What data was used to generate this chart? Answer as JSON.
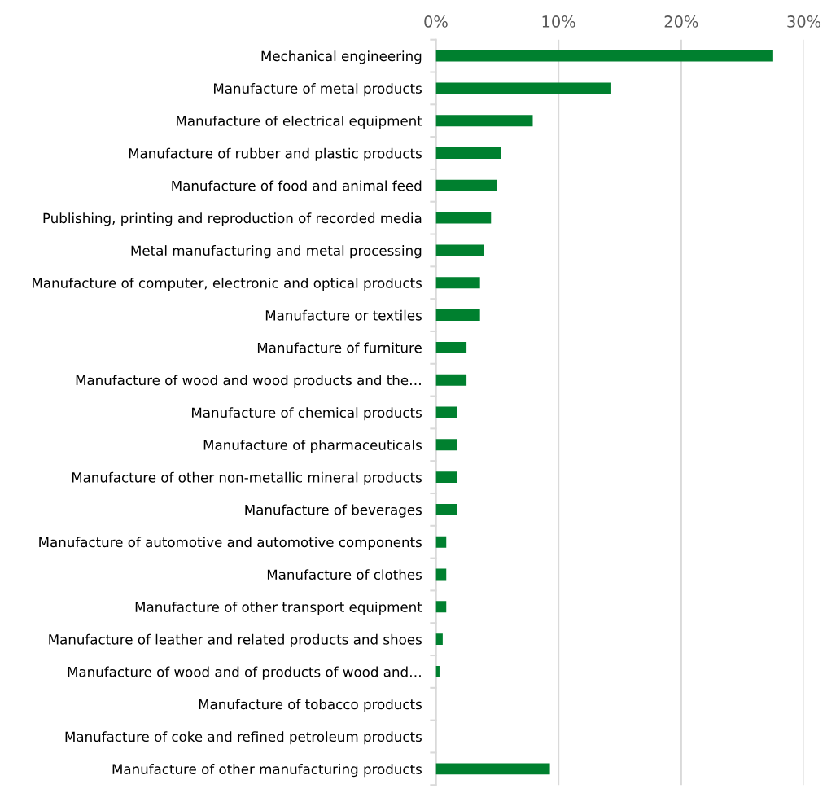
{
  "chart_data": {
    "type": "bar",
    "orientation": "horizontal",
    "categories": [
      "Mechanical engineering",
      "Manufacture of metal products",
      "Manufacture of electrical equipment",
      "Manufacture of rubber and plastic products",
      "Manufacture of food and animal feed",
      "Publishing, printing and reproduction of recorded media",
      "Metal manufacturing and metal processing",
      "Manufacture of computer, electronic and optical products",
      "Manufacture or textiles",
      "Manufacture of furniture",
      "Manufacture of wood and wood products and the…",
      "Manufacture of chemical products",
      "Manufacture of pharmaceuticals",
      "Manufacture of other non-metallic mineral products",
      "Manufacture of beverages",
      "Manufacture of automotive and automotive components",
      "Manufacture of clothes",
      "Manufacture of other transport equipment",
      "Manufacture of leather and related products and shoes",
      "Manufacture of wood and of products of wood and…",
      "Manufacture of tobacco products",
      "Manufacture of coke and refined petroleum products",
      "Manufacture of other manufacturing products"
    ],
    "values": [
      27.5,
      14.3,
      7.9,
      5.3,
      5.0,
      4.5,
      3.9,
      3.6,
      3.6,
      2.5,
      2.5,
      1.7,
      1.7,
      1.7,
      1.7,
      0.85,
      0.85,
      0.85,
      0.56,
      0.3,
      0,
      0,
      9.3
    ],
    "color": "#00802f",
    "xlim": [
      0,
      30
    ],
    "xticks": [
      {
        "value": 0,
        "label": "0%"
      },
      {
        "value": 10,
        "label": "10%"
      },
      {
        "value": 20,
        "label": "20%"
      },
      {
        "value": 30,
        "label": "30%"
      }
    ],
    "grid": "x",
    "legend": false
  }
}
